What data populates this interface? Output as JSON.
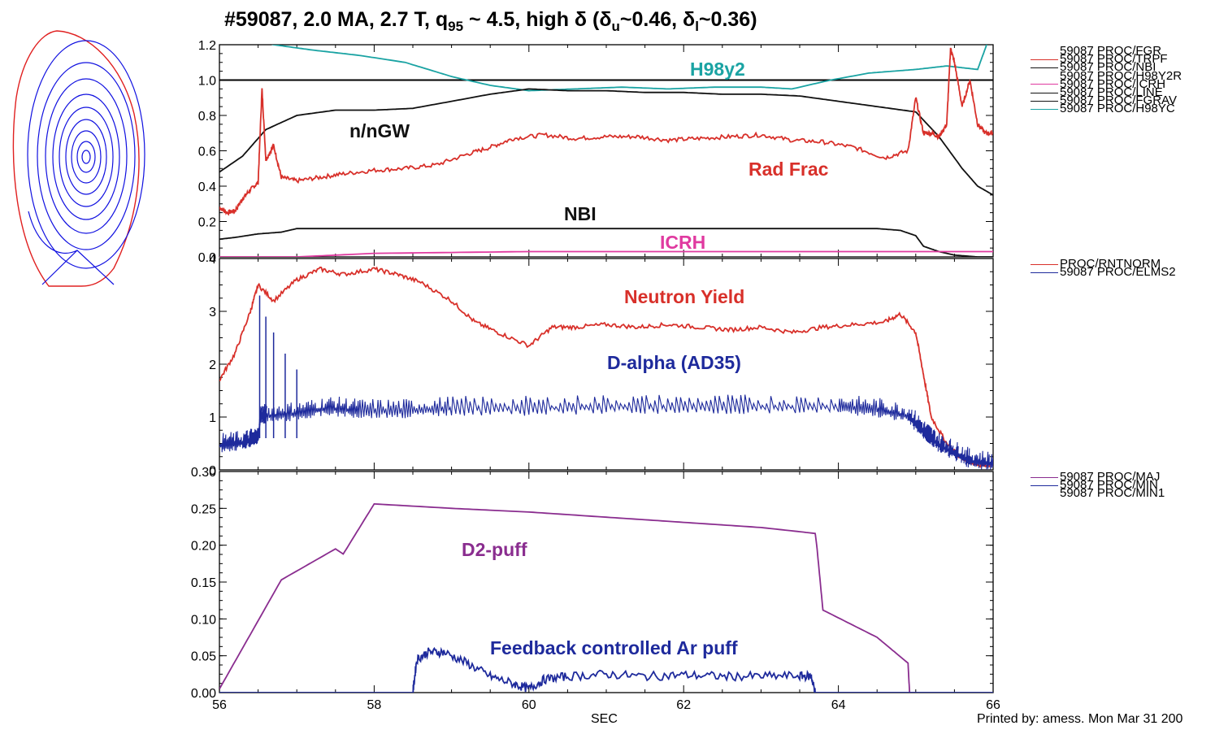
{
  "title_parts": {
    "main": "#59087, 2.0 MA, 2.7 T, q",
    "q_sub": "95",
    "mid": " ~ 4.5, high δ (δ",
    "u_sub": "u",
    "mid2": "~0.46, δ",
    "l_sub": "l",
    "end": "~0.36)"
  },
  "chart_data": [
    {
      "type": "line",
      "panel": "top",
      "ylim": [
        0,
        1.2
      ],
      "xlim": [
        56,
        66
      ],
      "yticks": [
        "0.0",
        "0.2",
        "0.4",
        "0.6",
        "0.8",
        "1.0",
        "1.2"
      ],
      "reference_line": 1.0,
      "annotations": {
        "h98": "H98y2",
        "ngw": "n/nGW",
        "rad": "Rad Frac",
        "nbi": "NBI",
        "icrh": "ICRH"
      },
      "legend": [
        "59087 PROC/FGR",
        "59087 PROC/TRPF",
        "59087 PROC/NBI",
        "59087 PROC/H98Y2R",
        "59087 PROC/ICRH",
        "59087 PROC/LINE",
        "59087 PROC/FGRAV",
        "59087 PROC/H98YC"
      ],
      "series": [
        {
          "key": "h98",
          "color": "#1aa3a3",
          "x": [
            56.0,
            56.7,
            57.2,
            57.8,
            58.4,
            59.0,
            59.5,
            60.0,
            60.6,
            61.2,
            61.8,
            62.4,
            63.0,
            63.4,
            63.9,
            64.4,
            65.0,
            65.4,
            65.8,
            66.0
          ],
          "y": [
            1.3,
            1.2,
            1.17,
            1.14,
            1.1,
            1.02,
            0.97,
            0.94,
            0.95,
            0.96,
            0.95,
            0.96,
            0.96,
            0.95,
            1.0,
            1.04,
            1.06,
            1.08,
            1.06,
            1.3
          ]
        },
        {
          "key": "ngw",
          "color": "#111111",
          "x": [
            56.0,
            56.3,
            56.6,
            57.0,
            57.5,
            58.0,
            58.5,
            59.0,
            59.5,
            60.0,
            60.5,
            61.0,
            61.5,
            62.0,
            62.5,
            63.0,
            63.5,
            64.0,
            64.5,
            65.0,
            65.3,
            65.6,
            65.8,
            66.0
          ],
          "y": [
            0.48,
            0.57,
            0.72,
            0.8,
            0.83,
            0.83,
            0.84,
            0.88,
            0.92,
            0.95,
            0.94,
            0.94,
            0.93,
            0.93,
            0.92,
            0.92,
            0.91,
            0.88,
            0.85,
            0.82,
            0.68,
            0.5,
            0.4,
            0.35
          ]
        },
        {
          "key": "rad",
          "color": "#d8302a",
          "x": [
            56.0,
            56.1,
            56.2,
            56.3,
            56.4,
            56.5,
            56.55,
            56.6,
            56.7,
            56.8,
            57.0,
            57.3,
            57.6,
            58.0,
            58.4,
            58.8,
            59.2,
            59.5,
            59.8,
            60.2,
            60.6,
            61.0,
            61.4,
            61.8,
            62.2,
            62.6,
            63.0,
            63.4,
            63.8,
            64.2,
            64.6,
            64.9,
            65.0,
            65.1,
            65.2,
            65.3,
            65.4,
            65.45,
            65.5,
            65.6,
            65.7,
            65.8,
            65.9,
            66.0
          ],
          "y": [
            0.28,
            0.25,
            0.26,
            0.33,
            0.38,
            0.42,
            0.95,
            0.55,
            0.63,
            0.45,
            0.43,
            0.45,
            0.47,
            0.49,
            0.5,
            0.52,
            0.58,
            0.62,
            0.67,
            0.69,
            0.67,
            0.68,
            0.68,
            0.66,
            0.67,
            0.68,
            0.69,
            0.66,
            0.65,
            0.62,
            0.56,
            0.6,
            0.9,
            0.7,
            0.7,
            0.68,
            0.75,
            1.18,
            1.1,
            0.85,
            1.0,
            0.75,
            0.7,
            0.7
          ]
        },
        {
          "key": "nbi",
          "color": "#111111",
          "x": [
            56.0,
            56.2,
            56.5,
            56.8,
            57.0,
            57.5,
            58.0,
            59.0,
            60.0,
            61.0,
            62.0,
            63.0,
            64.0,
            64.5,
            64.8,
            65.0,
            65.1,
            65.3,
            65.5,
            65.8,
            66.0
          ],
          "y": [
            0.1,
            0.11,
            0.13,
            0.14,
            0.16,
            0.16,
            0.16,
            0.16,
            0.16,
            0.16,
            0.16,
            0.16,
            0.16,
            0.16,
            0.15,
            0.12,
            0.06,
            0.03,
            0.01,
            0.0,
            0.0
          ]
        },
        {
          "key": "icrh",
          "color": "#e03aa0",
          "x": [
            56.0,
            57.0,
            58.0,
            60.0,
            62.0,
            64.0,
            65.0,
            65.2,
            66.0
          ],
          "y": [
            0.0,
            0.0,
            0.02,
            0.03,
            0.03,
            0.03,
            0.03,
            0.03,
            0.03
          ]
        }
      ]
    },
    {
      "type": "line",
      "panel": "middle",
      "ylim": [
        0,
        4
      ],
      "xlim": [
        56,
        66
      ],
      "yticks": [
        "0",
        "1",
        "2",
        "3",
        "4"
      ],
      "annotations": {
        "neutron": "Neutron Yield",
        "dalpha": "D-alpha (AD35)"
      },
      "legend": [
        "PROC/RNTNORM",
        "59087 PROC/ELMS2"
      ],
      "series": [
        {
          "key": "neutron",
          "color": "#d8302a",
          "x": [
            56.0,
            56.2,
            56.4,
            56.5,
            56.7,
            57.0,
            57.3,
            57.6,
            58.0,
            58.3,
            58.6,
            59.0,
            59.3,
            59.6,
            60.0,
            60.3,
            60.6,
            61.0,
            61.4,
            61.8,
            62.2,
            62.6,
            63.0,
            63.4,
            63.8,
            64.2,
            64.6,
            64.8,
            65.0,
            65.1,
            65.2,
            65.4,
            65.6,
            65.8,
            66.0
          ],
          "y": [
            1.7,
            2.2,
            3.0,
            3.5,
            3.2,
            3.6,
            3.8,
            3.7,
            3.8,
            3.7,
            3.55,
            3.2,
            2.8,
            2.6,
            2.35,
            2.7,
            2.7,
            2.75,
            2.7,
            2.75,
            2.7,
            2.65,
            2.7,
            2.6,
            2.7,
            2.75,
            2.8,
            2.95,
            2.6,
            1.8,
            1.0,
            0.5,
            0.2,
            0.1,
            0.1
          ]
        },
        {
          "key": "dalpha",
          "color": "#1e2a9c",
          "x": [
            56.0,
            56.3,
            56.5,
            56.52,
            56.6,
            57.0,
            57.4,
            57.8,
            58.4,
            59.0,
            60.0,
            61.0,
            62.0,
            63.0,
            64.0,
            64.5,
            64.9,
            65.1,
            65.3,
            65.5,
            65.7,
            66.0
          ],
          "y": [
            0.45,
            0.5,
            0.6,
            1.0,
            1.0,
            1.05,
            1.15,
            1.1,
            1.1,
            1.15,
            1.15,
            1.18,
            1.18,
            1.18,
            1.18,
            1.12,
            1.0,
            0.7,
            0.45,
            0.3,
            0.15,
            0.1
          ],
          "spiky": true
        }
      ]
    },
    {
      "type": "line",
      "panel": "bottom",
      "ylim": [
        0,
        0.3
      ],
      "xlim": [
        56,
        66
      ],
      "yticks": [
        "0.00",
        "0.05",
        "0.10",
        "0.15",
        "0.20",
        "0.25",
        "0.30"
      ],
      "xticks": [
        "56",
        "58",
        "60",
        "62",
        "64",
        "66"
      ],
      "xlabel": "SEC",
      "annotations": {
        "d2": "D2-puff",
        "ar": "Feedback controlled Ar puff"
      },
      "legend": [
        "59087 PROC/MAJ",
        "59087 PROC/MIN",
        "59087 PROC/MIN1"
      ],
      "series": [
        {
          "key": "d2",
          "color": "#8a2d8f",
          "x": [
            56.0,
            56.8,
            57.5,
            57.6,
            58.0,
            59.0,
            60.0,
            61.0,
            62.0,
            63.0,
            63.7,
            63.72,
            63.8,
            64.5,
            64.9,
            64.92,
            65.0
          ],
          "y": [
            0.005,
            0.153,
            0.195,
            0.188,
            0.256,
            0.25,
            0.245,
            0.238,
            0.231,
            0.224,
            0.216,
            0.2,
            0.112,
            0.075,
            0.04,
            0.0,
            0.0
          ]
        },
        {
          "key": "ar",
          "color": "#1e2a9c",
          "x": [
            56.0,
            58.5,
            58.55,
            58.7,
            58.9,
            59.2,
            59.5,
            59.8,
            60.0,
            60.2,
            60.5,
            61.0,
            61.5,
            62.0,
            62.5,
            63.0,
            63.5,
            63.65,
            63.7,
            66.0
          ],
          "y": [
            0.0,
            0.0,
            0.045,
            0.055,
            0.055,
            0.04,
            0.022,
            0.012,
            0.005,
            0.018,
            0.022,
            0.025,
            0.022,
            0.024,
            0.022,
            0.022,
            0.023,
            0.022,
            0.0,
            0.0
          ],
          "noisy": true
        }
      ]
    }
  ],
  "footer": {
    "printed": "Printed by: amess. Mon Mar 31 200"
  }
}
